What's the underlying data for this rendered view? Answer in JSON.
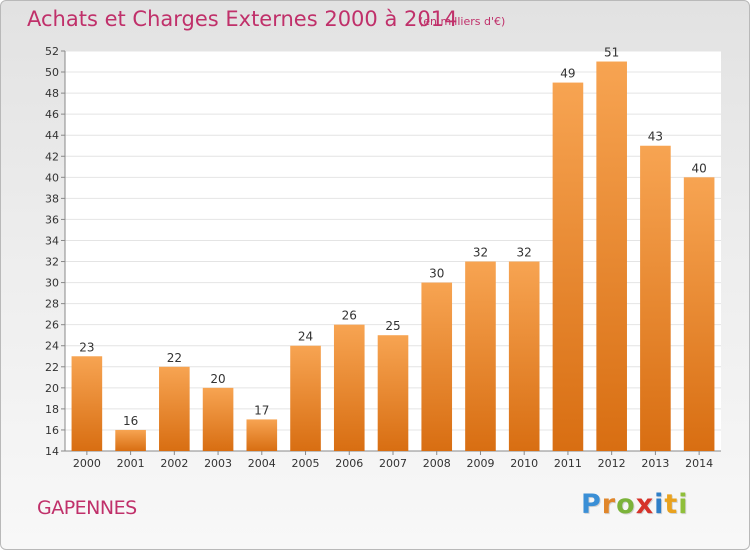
{
  "chart_data": {
    "type": "bar",
    "title": "Achats et Charges Externes 2000 à 2014",
    "subtitle": "(en milliers d'€)",
    "categories": [
      "2000",
      "2001",
      "2002",
      "2003",
      "2004",
      "2005",
      "2006",
      "2007",
      "2008",
      "2009",
      "2010",
      "2011",
      "2012",
      "2013",
      "2014"
    ],
    "values": [
      23,
      16,
      22,
      20,
      17,
      24,
      26,
      25,
      30,
      32,
      32,
      49,
      51,
      43,
      40
    ],
    "ylim": [
      14,
      52
    ],
    "yticks": [
      14,
      16,
      18,
      20,
      22,
      24,
      26,
      28,
      30,
      32,
      34,
      36,
      38,
      40,
      42,
      44,
      46,
      48,
      50,
      52
    ],
    "grid": true,
    "bar_color": "#f0923a",
    "xlabel": "",
    "ylabel": ""
  },
  "footer": {
    "place": "GAPENNES"
  },
  "logo": {
    "letters": [
      "P",
      "r",
      "o",
      "x",
      "i",
      "t",
      "i"
    ],
    "colors": [
      "#3a8fd6",
      "#e0862a",
      "#7bb33a",
      "#d6332a",
      "#2f7fc8",
      "#e9a21e",
      "#8fbf3a"
    ]
  }
}
